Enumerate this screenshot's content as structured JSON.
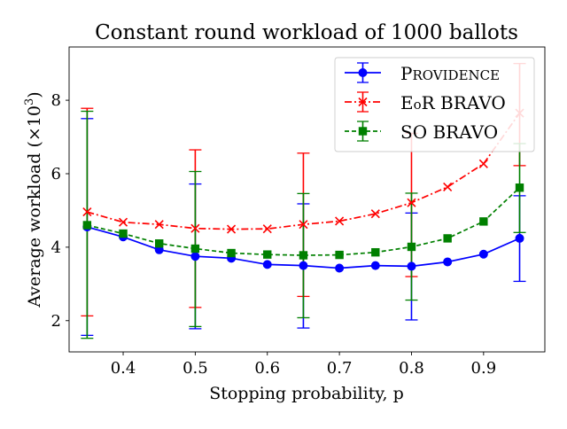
{
  "chart_data": {
    "type": "line",
    "title": "Constant round workload of 1000 ballots",
    "xlabel": "Stopping probability, p",
    "ylabel_prefix": "Average workload (×10",
    "ylabel_exp": "3",
    "ylabel_suffix": ")",
    "xlim": [
      0.325,
      0.985
    ],
    "ylim": [
      1.15,
      9.45
    ],
    "xticks": [
      0.4,
      0.5,
      0.6,
      0.7,
      0.8,
      0.9
    ],
    "xtick_labels": [
      "0.4",
      "0.5",
      "0.6",
      "0.7",
      "0.8",
      "0.9"
    ],
    "yticks": [
      2,
      4,
      6,
      8
    ],
    "ytick_labels": [
      "2",
      "4",
      "6",
      "8"
    ],
    "grid": false,
    "legend_position": "top-right",
    "x": [
      0.35,
      0.4,
      0.45,
      0.5,
      0.55,
      0.6,
      0.65,
      0.7,
      0.75,
      0.8,
      0.85,
      0.9,
      0.95
    ],
    "series": [
      {
        "name": "PROVIDENCE",
        "legend_label_first": "P",
        "legend_label_rest": "ROVIDENCE",
        "color": "#0000ff",
        "linestyle": "solid",
        "marker": "circle",
        "values": [
          4.55,
          4.28,
          3.93,
          3.75,
          3.7,
          3.53,
          3.5,
          3.43,
          3.5,
          3.48,
          3.6,
          3.81,
          4.24
        ],
        "errorbars": [
          {
            "x": 0.35,
            "lo": 1.6,
            "hi": 7.5
          },
          {
            "x": 0.5,
            "lo": 1.78,
            "hi": 5.72
          },
          {
            "x": 0.65,
            "lo": 1.8,
            "hi": 5.18
          },
          {
            "x": 0.8,
            "lo": 2.02,
            "hi": 4.93
          },
          {
            "x": 0.95,
            "lo": 3.07,
            "hi": 5.4
          }
        ]
      },
      {
        "name": "EoR BRAVO",
        "legend_label_first": "E",
        "legend_label_rest": "O",
        "legend_label_mid": "o",
        "legend_label_tail": "R BRAVO",
        "color": "#ff0000",
        "linestyle": "dashdot",
        "marker": "x",
        "values": [
          4.96,
          4.68,
          4.62,
          4.51,
          4.49,
          4.5,
          4.62,
          4.71,
          4.91,
          5.21,
          5.64,
          6.27,
          7.65
        ],
        "errorbars": [
          {
            "x": 0.35,
            "lo": 2.13,
            "hi": 7.78
          },
          {
            "x": 0.5,
            "lo": 2.36,
            "hi": 6.65
          },
          {
            "x": 0.65,
            "lo": 2.66,
            "hi": 6.56
          },
          {
            "x": 0.8,
            "lo": 3.2,
            "hi": 7.1
          },
          {
            "x": 0.95,
            "lo": 6.22,
            "hi": 9.0
          }
        ]
      },
      {
        "name": "SO BRAVO",
        "color": "#008000",
        "linestyle": "dashed",
        "marker": "square",
        "values": [
          4.6,
          4.37,
          4.1,
          3.96,
          3.84,
          3.8,
          3.78,
          3.79,
          3.86,
          4.01,
          4.24,
          4.7,
          5.62
        ],
        "errorbars": [
          {
            "x": 0.35,
            "lo": 1.52,
            "hi": 7.7
          },
          {
            "x": 0.5,
            "lo": 1.84,
            "hi": 6.06
          },
          {
            "x": 0.65,
            "lo": 2.08,
            "hi": 5.46
          },
          {
            "x": 0.8,
            "lo": 2.56,
            "hi": 5.47
          },
          {
            "x": 0.95,
            "lo": 4.4,
            "hi": 6.82
          }
        ]
      }
    ]
  }
}
